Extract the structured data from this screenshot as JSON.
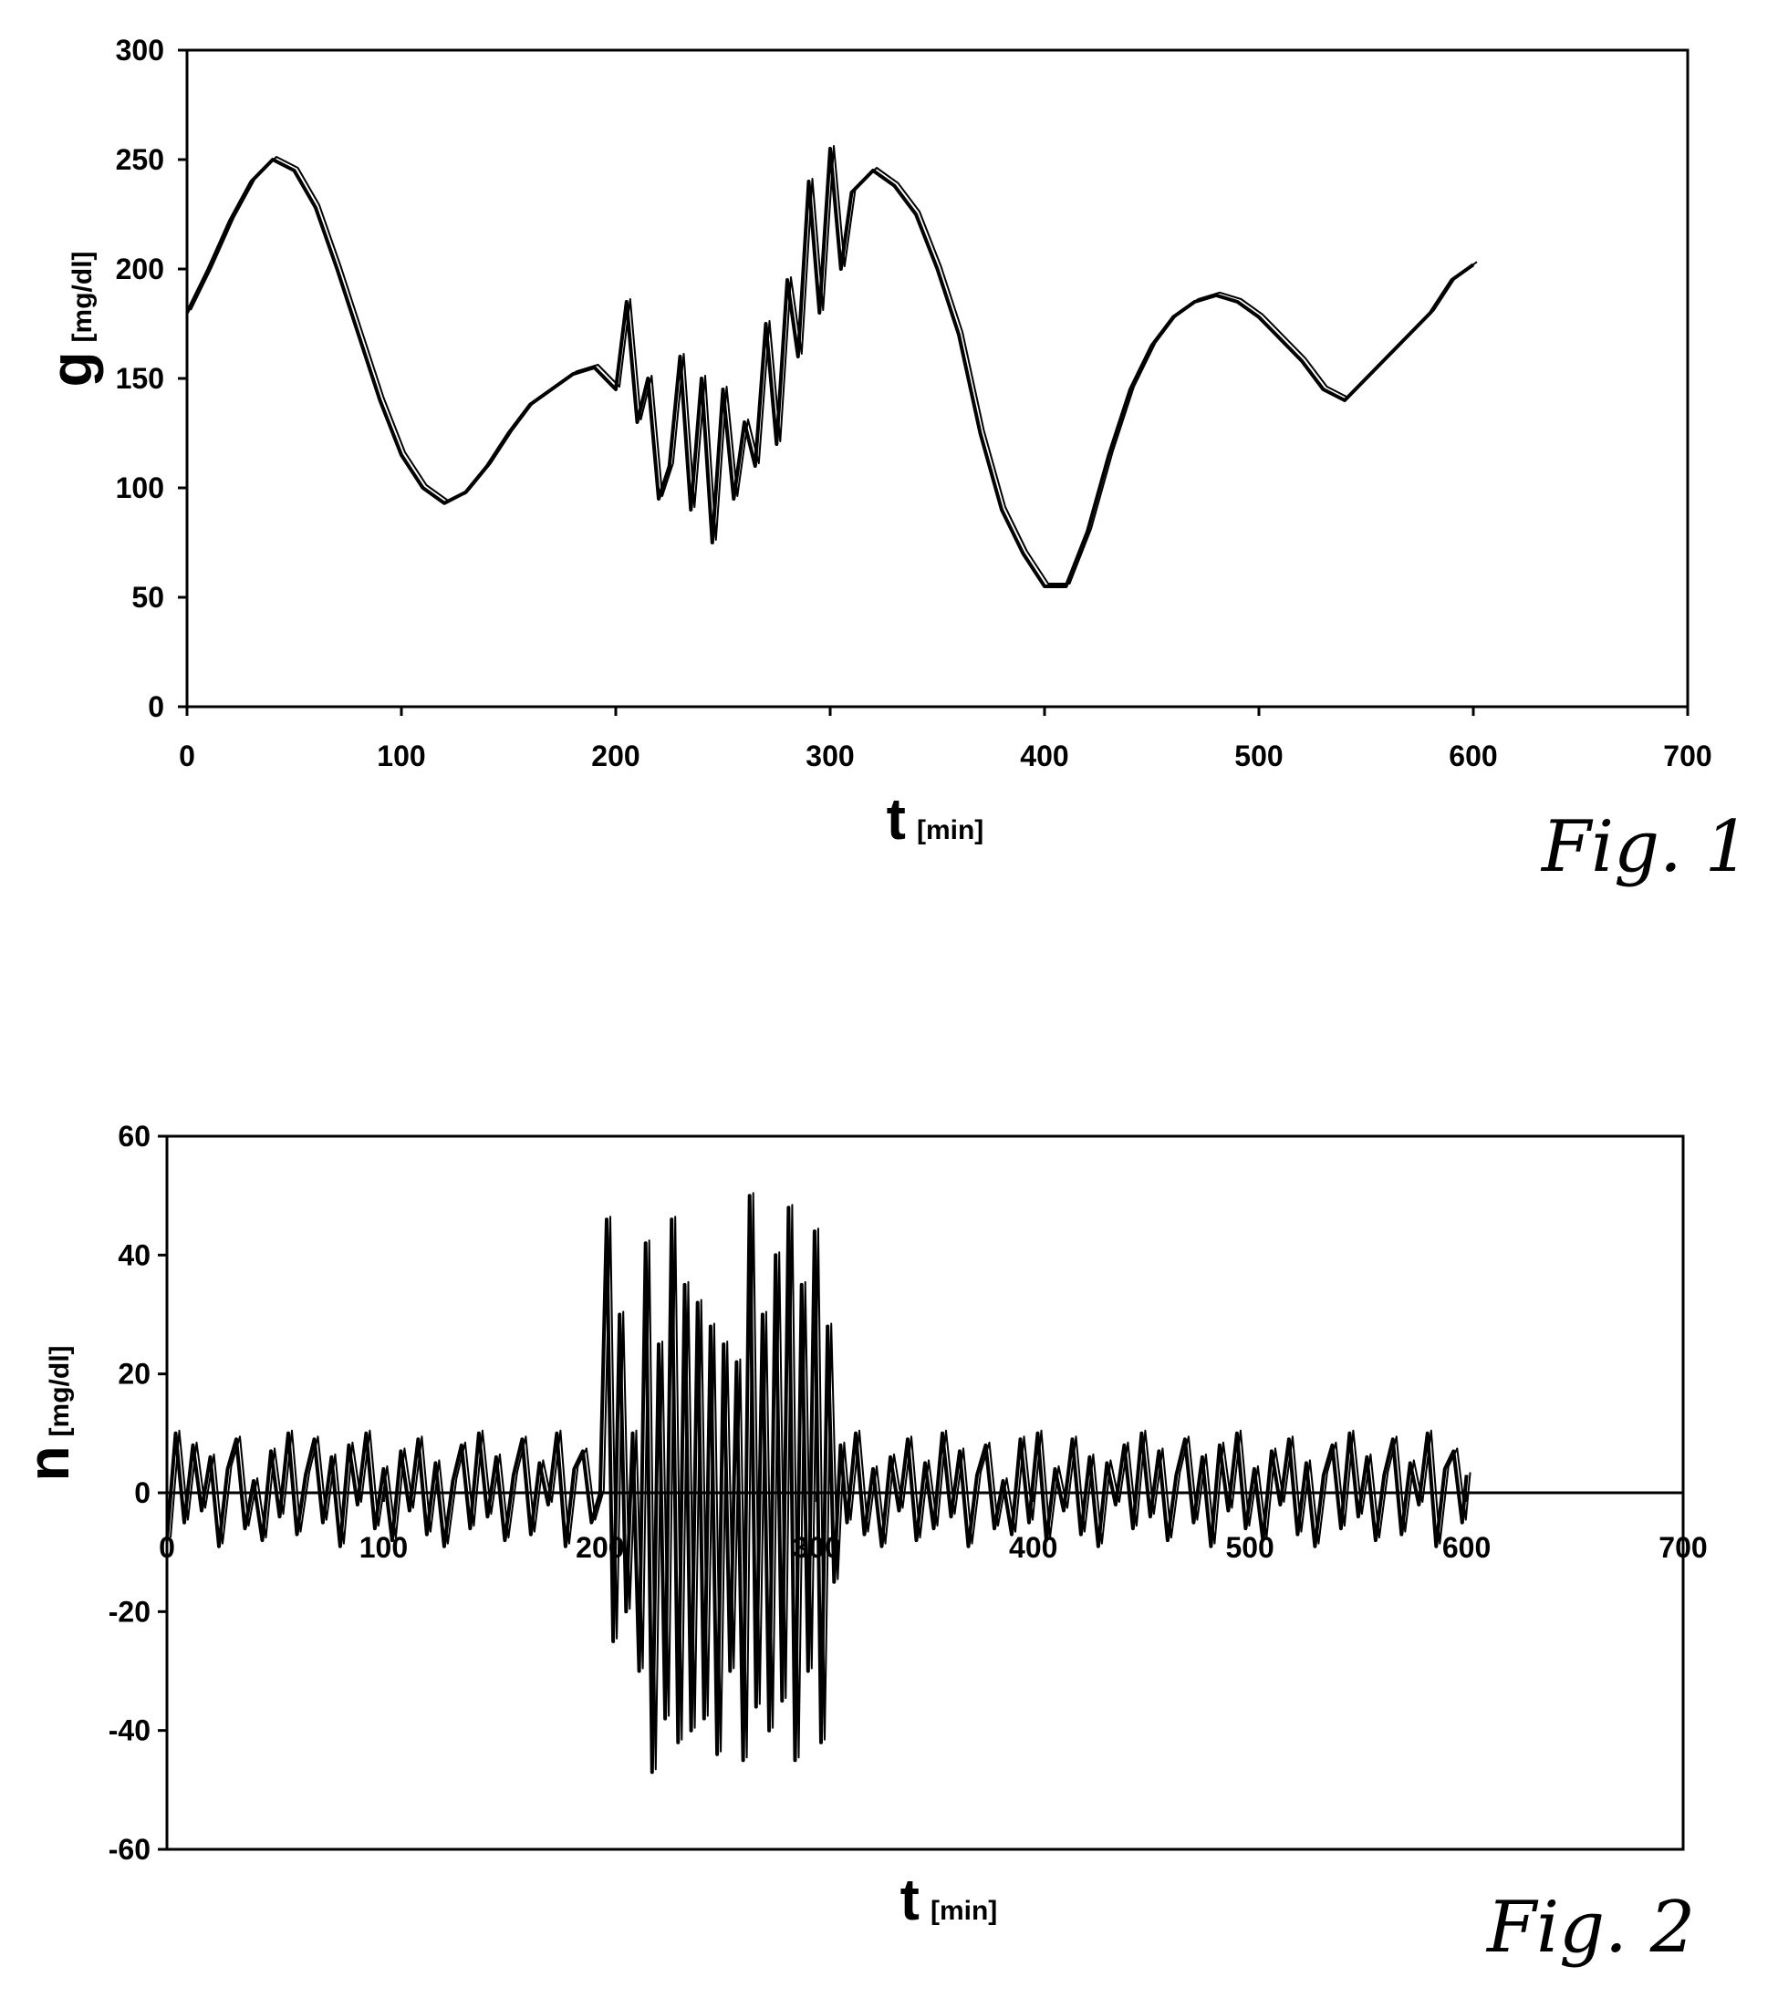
{
  "chart_data": [
    {
      "type": "line",
      "caption": "Fig. 1",
      "ylabel_symbol": "g",
      "ylabel_unit": "[mg/dl]",
      "xlabel_symbol": "t",
      "xlabel_unit": "[min]",
      "xlim": [
        0,
        700
      ],
      "ylim": [
        0,
        300
      ],
      "xticks": [
        0,
        100,
        200,
        300,
        400,
        500,
        600,
        700
      ],
      "yticks": [
        0,
        50,
        100,
        150,
        200,
        250,
        300
      ],
      "line_color": "#000000",
      "series": [
        {
          "x": [
            0,
            10,
            20,
            30,
            40,
            50,
            60,
            70,
            80,
            90,
            100,
            110,
            120,
            130,
            140,
            150,
            160,
            170,
            180,
            190,
            200,
            205,
            210,
            215,
            220,
            225,
            230,
            235,
            240,
            245,
            250,
            255,
            260,
            265,
            270,
            275,
            280,
            285,
            290,
            295,
            300,
            305,
            310,
            320,
            330,
            340,
            350,
            360,
            370,
            380,
            390,
            400,
            410,
            420,
            430,
            440,
            450,
            460,
            470,
            480,
            490,
            500,
            510,
            520,
            530,
            540,
            550,
            560,
            570,
            580,
            590,
            600
          ],
          "values": [
            180,
            200,
            222,
            240,
            250,
            245,
            228,
            200,
            170,
            140,
            115,
            100,
            93,
            98,
            110,
            125,
            138,
            145,
            152,
            155,
            145,
            185,
            130,
            150,
            95,
            110,
            160,
            90,
            150,
            75,
            145,
            95,
            130,
            110,
            175,
            120,
            195,
            160,
            240,
            180,
            255,
            200,
            235,
            245,
            238,
            225,
            200,
            170,
            125,
            90,
            70,
            55,
            55,
            80,
            115,
            145,
            165,
            178,
            185,
            188,
            185,
            178,
            168,
            158,
            145,
            140,
            150,
            160,
            170,
            180,
            195,
            202
          ]
        }
      ]
    },
    {
      "type": "line",
      "caption": "Fig. 2",
      "ylabel_symbol": "n",
      "ylabel_unit": "[mg/dl]",
      "xlabel_symbol": "t",
      "xlabel_unit": "[min]",
      "xlim": [
        0,
        700
      ],
      "ylim": [
        -60,
        60
      ],
      "xticks": [
        0,
        100,
        200,
        300,
        400,
        500,
        600,
        700
      ],
      "yticks": [
        -60,
        -40,
        -20,
        0,
        20,
        40,
        60
      ],
      "line_color": "#000000",
      "series": [
        {
          "x": [
            0,
            4,
            8,
            12,
            16,
            20,
            24,
            28,
            32,
            36,
            40,
            44,
            48,
            52,
            56,
            60,
            64,
            68,
            72,
            76,
            80,
            84,
            88,
            92,
            96,
            100,
            104,
            108,
            112,
            116,
            120,
            124,
            128,
            132,
            136,
            140,
            144,
            148,
            152,
            156,
            160,
            164,
            168,
            172,
            176,
            180,
            184,
            188,
            192,
            196,
            200,
            203,
            206,
            209,
            212,
            215,
            218,
            221,
            224,
            227,
            230,
            233,
            236,
            239,
            242,
            245,
            248,
            251,
            254,
            257,
            260,
            263,
            266,
            269,
            272,
            275,
            278,
            281,
            284,
            287,
            290,
            293,
            296,
            299,
            302,
            305,
            308,
            311,
            314,
            318,
            322,
            326,
            330,
            334,
            338,
            342,
            346,
            350,
            354,
            358,
            362,
            366,
            370,
            374,
            378,
            382,
            386,
            390,
            394,
            398,
            402,
            406,
            410,
            414,
            418,
            422,
            426,
            430,
            434,
            438,
            442,
            446,
            450,
            454,
            458,
            462,
            466,
            470,
            474,
            478,
            482,
            486,
            490,
            494,
            498,
            502,
            506,
            510,
            514,
            518,
            522,
            526,
            530,
            534,
            538,
            542,
            546,
            550,
            554,
            558,
            562,
            566,
            570,
            574,
            578,
            582,
            586,
            590,
            594,
            598,
            600
          ],
          "values": [
            -8,
            10,
            -5,
            8,
            -3,
            6,
            -9,
            4,
            9,
            -6,
            2,
            -8,
            7,
            -4,
            10,
            -7,
            3,
            9,
            -5,
            6,
            -9,
            8,
            -2,
            10,
            -6,
            4,
            -8,
            7,
            -3,
            9,
            -7,
            5,
            -9,
            2,
            8,
            -6,
            10,
            -4,
            6,
            -8,
            3,
            9,
            -7,
            5,
            -2,
            10,
            -9,
            4,
            7,
            -5,
            0,
            46,
            -25,
            30,
            -20,
            10,
            -30,
            42,
            -47,
            25,
            -38,
            46,
            -42,
            35,
            -40,
            32,
            -38,
            28,
            -44,
            25,
            -30,
            22,
            -45,
            50,
            -36,
            30,
            -40,
            40,
            -35,
            48,
            -45,
            35,
            -30,
            44,
            -42,
            28,
            -15,
            8,
            -5,
            10,
            -7,
            4,
            -9,
            6,
            -3,
            9,
            -8,
            5,
            -6,
            10,
            -4,
            7,
            -9,
            3,
            8,
            -6,
            2,
            -7,
            9,
            -5,
            10,
            -8,
            4,
            -3,
            9,
            -7,
            6,
            -9,
            5,
            -2,
            8,
            -6,
            10,
            -4,
            7,
            -8,
            3,
            9,
            -5,
            6,
            -9,
            8,
            -3,
            10,
            -6,
            4,
            -8,
            7,
            -2,
            9,
            -7,
            5,
            -9,
            3,
            8,
            -6,
            10,
            -4,
            6,
            -8,
            3,
            9,
            -7,
            5,
            -2,
            10,
            -9,
            4,
            7,
            -5,
            3
          ]
        }
      ]
    }
  ]
}
